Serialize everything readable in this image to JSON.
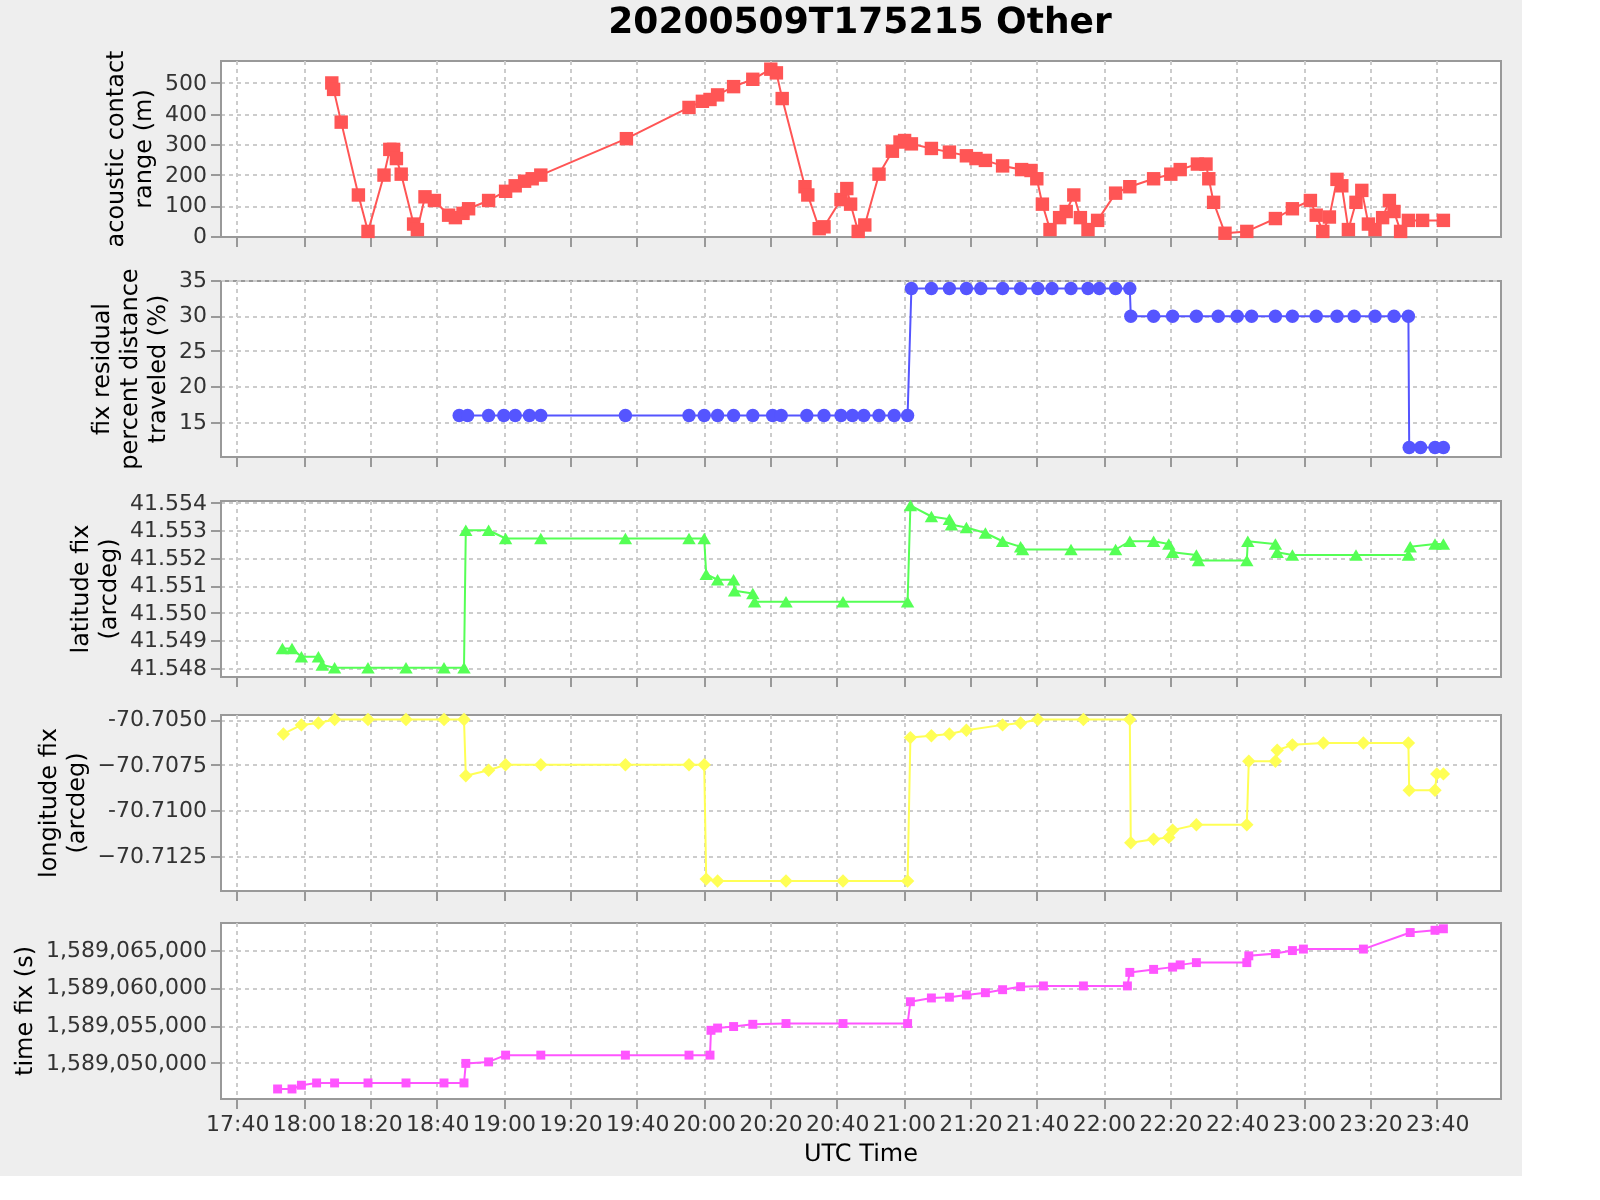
{
  "chart_data": [
    {
      "type": "line",
      "title": "20200509T175215 Other",
      "ylabel": "acoustic contact range (m)",
      "color": "#ff5555",
      "marker": "square",
      "grid": true,
      "tick_labels": "y",
      "xlim": [
        17.583,
        23.983
      ],
      "xticks": [
        {
          "value": 17.6667,
          "label": null
        },
        {
          "value": 18,
          "label": null
        },
        {
          "value": 18.3333,
          "label": null
        },
        {
          "value": 18.6667,
          "label": null
        },
        {
          "value": 19,
          "label": null
        },
        {
          "value": 19.3333,
          "label": null
        },
        {
          "value": 19.6667,
          "label": null
        },
        {
          "value": 20,
          "label": null
        },
        {
          "value": 20.3333,
          "label": null
        },
        {
          "value": 20.6667,
          "label": null
        },
        {
          "value": 21,
          "label": null
        },
        {
          "value": 21.3333,
          "label": null
        },
        {
          "value": 21.6667,
          "label": null
        },
        {
          "value": 22,
          "label": null
        },
        {
          "value": 22.3333,
          "label": null
        },
        {
          "value": 22.6667,
          "label": null
        },
        {
          "value": 23,
          "label": null
        },
        {
          "value": 23.3333,
          "label": null
        },
        {
          "value": 23.6667,
          "label": null
        }
      ],
      "ylim": [
        0,
        575
      ],
      "yticks": [
        0,
        100,
        200,
        300,
        400,
        500
      ],
      "x": [
        18.142,
        18.151,
        18.189,
        18.275,
        18.323,
        18.403,
        18.432,
        18.451,
        18.465,
        18.489,
        18.551,
        18.57,
        18.608,
        18.655,
        18.726,
        18.76,
        18.798,
        18.826,
        18.926,
        19.011,
        19.059,
        19.106,
        19.144,
        19.187,
        19.615,
        19.928,
        19.995,
        20.033,
        20.071,
        20.151,
        20.247,
        20.337,
        20.365,
        20.394,
        20.508,
        20.522,
        20.579,
        20.603,
        20.688,
        20.717,
        20.736,
        20.774,
        20.807,
        20.878,
        20.945,
        20.983,
        21.006,
        21.04,
        21.14,
        21.23,
        21.315,
        21.363,
        21.41,
        21.496,
        21.591,
        21.638,
        21.667,
        21.695,
        21.733,
        21.781,
        21.814,
        21.852,
        21.885,
        21.923,
        21.971,
        22.061,
        22.132,
        22.251,
        22.337,
        22.384,
        22.47,
        22.513,
        22.527,
        22.551,
        22.608,
        22.717,
        22.86,
        22.945,
        23.035,
        23.064,
        23.097,
        23.13,
        23.168,
        23.192,
        23.225,
        23.263,
        23.292,
        23.325,
        23.358,
        23.396,
        23.43,
        23.453,
        23.486,
        23.525,
        23.596,
        23.7
      ],
      "values": [
        500,
        479,
        372,
        134,
        15,
        199,
        283,
        283,
        253,
        202,
        39,
        21,
        128,
        116,
        68,
        60,
        74,
        89,
        116,
        146,
        164,
        179,
        187,
        199,
        318,
        420,
        440,
        446,
        461,
        488,
        512,
        545,
        533,
        449,
        161,
        134,
        24,
        30,
        119,
        155,
        104,
        15,
        36,
        202,
        277,
        307,
        312,
        301,
        286,
        274,
        262,
        253,
        247,
        229,
        217,
        214,
        187,
        104,
        21,
        60,
        80,
        134,
        60,
        21,
        51,
        140,
        161,
        187,
        202,
        217,
        235,
        235,
        187,
        110,
        9,
        15,
        57,
        89,
        116,
        68,
        15,
        62,
        185,
        164,
        21,
        110,
        149,
        39,
        21,
        60,
        116,
        80,
        15,
        51,
        51,
        51
      ]
    },
    {
      "type": "line",
      "ylabel": "fix residual percent distance traveled (%)",
      "color": "#5555ff",
      "marker": "circle",
      "grid": true,
      "tick_labels": "y",
      "xlim": [
        17.583,
        23.983
      ],
      "xticks": [
        {
          "value": 17.6667,
          "label": null
        },
        {
          "value": 18,
          "label": null
        },
        {
          "value": 18.3333,
          "label": null
        },
        {
          "value": 18.6667,
          "label": null
        },
        {
          "value": 19,
          "label": null
        },
        {
          "value": 19.3333,
          "label": null
        },
        {
          "value": 19.6667,
          "label": null
        },
        {
          "value": 20,
          "label": null
        },
        {
          "value": 20.3333,
          "label": null
        },
        {
          "value": 20.6667,
          "label": null
        },
        {
          "value": 21,
          "label": null
        },
        {
          "value": 21.3333,
          "label": null
        },
        {
          "value": 21.6667,
          "label": null
        },
        {
          "value": 22,
          "label": null
        },
        {
          "value": 22.3333,
          "label": null
        },
        {
          "value": 22.6667,
          "label": null
        },
        {
          "value": 23,
          "label": null
        },
        {
          "value": 23.3333,
          "label": null
        },
        {
          "value": 23.6667,
          "label": null
        }
      ],
      "ylim": [
        10.2,
        35
      ],
      "yticks": [
        15,
        20,
        25,
        30,
        35
      ],
      "x": [
        18.779,
        18.821,
        18.926,
        19.002,
        19.059,
        19.13,
        19.187,
        19.61,
        19.928,
        20.004,
        20.071,
        20.151,
        20.247,
        20.346,
        20.389,
        20.517,
        20.603,
        20.688,
        20.745,
        20.802,
        20.878,
        20.954,
        21.021,
        21.04,
        21.14,
        21.23,
        21.315,
        21.387,
        21.496,
        21.586,
        21.672,
        21.743,
        21.838,
        21.923,
        21.98,
        22.061,
        22.132,
        22.137,
        22.251,
        22.346,
        22.465,
        22.574,
        22.669,
        22.741,
        22.86,
        22.945,
        23.064,
        23.168,
        23.254,
        23.358,
        23.453,
        23.525,
        23.529,
        23.586,
        23.658,
        23.7
      ],
      "values": [
        15.9,
        15.9,
        15.9,
        15.9,
        15.9,
        15.9,
        15.9,
        15.9,
        15.9,
        15.9,
        15.9,
        15.9,
        15.9,
        15.9,
        15.9,
        15.9,
        15.9,
        15.9,
        15.9,
        15.9,
        15.9,
        15.9,
        15.9,
        33.8,
        33.8,
        33.8,
        33.8,
        33.8,
        33.8,
        33.8,
        33.8,
        33.8,
        33.8,
        33.8,
        33.8,
        33.8,
        33.8,
        29.9,
        29.9,
        29.9,
        29.9,
        29.9,
        29.9,
        29.9,
        29.9,
        29.9,
        29.9,
        29.9,
        29.9,
        29.9,
        29.9,
        29.9,
        11.4,
        11.4,
        11.4,
        11.4
      ]
    },
    {
      "type": "line",
      "ylabel": "latitude fix (arcdeg)",
      "color": "#55ff55",
      "marker": "triangle",
      "grid": true,
      "tick_labels": "y",
      "xlim": [
        17.583,
        23.983
      ],
      "xticks": [
        {
          "value": 17.6667,
          "label": null
        },
        {
          "value": 18,
          "label": null
        },
        {
          "value": 18.3333,
          "label": null
        },
        {
          "value": 18.6667,
          "label": null
        },
        {
          "value": 19,
          "label": null
        },
        {
          "value": 19.3333,
          "label": null
        },
        {
          "value": 19.6667,
          "label": null
        },
        {
          "value": 20,
          "label": null
        },
        {
          "value": 20.3333,
          "label": null
        },
        {
          "value": 20.6667,
          "label": null
        },
        {
          "value": 21,
          "label": null
        },
        {
          "value": 21.3333,
          "label": null
        },
        {
          "value": 21.6667,
          "label": null
        },
        {
          "value": 22,
          "label": null
        },
        {
          "value": 22.3333,
          "label": null
        },
        {
          "value": 22.6667,
          "label": null
        },
        {
          "value": 23,
          "label": null
        },
        {
          "value": 23.3333,
          "label": null
        },
        {
          "value": 23.6667,
          "label": null
        }
      ],
      "ylim": [
        41.5477,
        41.5541
      ],
      "yticks": [
        41.548,
        41.549,
        {
          "value": 41.55,
          "label": "41.550"
        },
        41.551,
        41.552,
        41.553,
        41.554
      ],
      "x": [
        17.895,
        17.943,
        17.99,
        18.075,
        18.094,
        18.156,
        18.323,
        18.513,
        18.703,
        18.803,
        18.812,
        18.926,
        19.011,
        19.187,
        19.61,
        19.928,
        20.004,
        20.014,
        20.071,
        20.151,
        20.156,
        20.247,
        20.256,
        20.413,
        20.698,
        21.021,
        21.035,
        21.14,
        21.23,
        21.24,
        21.315,
        21.41,
        21.496,
        21.586,
        21.596,
        21.838,
        22.061,
        22.132,
        22.251,
        22.327,
        22.346,
        22.465,
        22.475,
        22.717,
        22.722,
        22.86,
        22.869,
        22.945,
        23.263,
        23.525,
        23.534,
        23.658,
        23.7
      ],
      "values": [
        41.5487,
        41.5487,
        41.5484,
        41.5484,
        41.5481,
        41.548,
        41.548,
        41.548,
        41.548,
        41.548,
        41.553,
        41.553,
        41.5527,
        41.5527,
        41.5527,
        41.5527,
        41.5527,
        41.5514,
        41.5512,
        41.5512,
        41.5508,
        41.5507,
        41.5504,
        41.5504,
        41.5504,
        41.5504,
        41.5539,
        41.5535,
        41.5534,
        41.5532,
        41.5531,
        41.5529,
        41.5526,
        41.5524,
        41.5523,
        41.5523,
        41.5523,
        41.5526,
        41.5526,
        41.5525,
        41.5522,
        41.5521,
        41.5519,
        41.5519,
        41.5526,
        41.5525,
        41.5522,
        41.5521,
        41.5521,
        41.5521,
        41.5524,
        41.5525,
        41.5525
      ]
    },
    {
      "type": "line",
      "ylabel": "longitude fix (arcdeg)",
      "color": "#ffff55",
      "marker": "diamond",
      "grid": true,
      "tick_labels": "y",
      "xlim": [
        17.583,
        23.983
      ],
      "xticks": [
        {
          "value": 17.6667,
          "label": null
        },
        {
          "value": 18,
          "label": null
        },
        {
          "value": 18.3333,
          "label": null
        },
        {
          "value": 18.6667,
          "label": null
        },
        {
          "value": 19,
          "label": null
        },
        {
          "value": 19.3333,
          "label": null
        },
        {
          "value": 19.6667,
          "label": null
        },
        {
          "value": 20,
          "label": null
        },
        {
          "value": 20.3333,
          "label": null
        },
        {
          "value": 20.6667,
          "label": null
        },
        {
          "value": 21,
          "label": null
        },
        {
          "value": 21.3333,
          "label": null
        },
        {
          "value": 21.6667,
          "label": null
        },
        {
          "value": 22,
          "label": null
        },
        {
          "value": 22.3333,
          "label": null
        },
        {
          "value": 22.6667,
          "label": null
        },
        {
          "value": 23,
          "label": null
        },
        {
          "value": 23.3333,
          "label": null
        },
        {
          "value": 23.6667,
          "label": null
        }
      ],
      "ylim": [
        -70.7144,
        -70.7047
      ],
      "yticks": [
        -70.7125,
        {
          "value": -70.71,
          "label": "-70.7100"
        },
        -70.7075,
        {
          "value": -70.705,
          "label": "-70.7050"
        }
      ],
      "x": [
        17.9,
        17.99,
        18.075,
        18.156,
        18.323,
        18.513,
        18.703,
        18.803,
        18.812,
        18.926,
        19.011,
        19.187,
        19.61,
        19.928,
        20.004,
        20.014,
        20.071,
        20.413,
        20.698,
        21.021,
        21.035,
        21.14,
        21.23,
        21.315,
        21.496,
        21.586,
        21.672,
        21.9,
        22.132,
        22.137,
        22.251,
        22.327,
        22.346,
        22.465,
        22.717,
        22.727,
        22.86,
        22.869,
        22.945,
        23.1,
        23.3,
        23.525,
        23.529,
        23.658,
        23.667,
        23.7
      ],
      "values": [
        -70.7058,
        -70.7053,
        -70.7052,
        -70.705,
        -70.705,
        -70.705,
        -70.705,
        -70.705,
        -70.7081,
        -70.7078,
        -70.7075,
        -70.7075,
        -70.7075,
        -70.7075,
        -70.7075,
        -70.7138,
        -70.7139,
        -70.7139,
        -70.7139,
        -70.7139,
        -70.706,
        -70.7059,
        -70.7058,
        -70.7056,
        -70.7053,
        -70.7052,
        -70.705,
        -70.705,
        -70.705,
        -70.7118,
        -70.7116,
        -70.7115,
        -70.7111,
        -70.7108,
        -70.7108,
        -70.7073,
        -70.7073,
        -70.7067,
        -70.7064,
        -70.7063,
        -70.7063,
        -70.7063,
        -70.7089,
        -70.7089,
        -70.708,
        -70.708
      ]
    },
    {
      "type": "line",
      "ylabel": "time fix (s)",
      "xlabel": "UTC Time",
      "color": "#ff55ff",
      "marker": "square",
      "grid": true,
      "xlim": [
        17.583,
        23.983
      ],
      "xticks": [
        {
          "value": 17.6667,
          "label": "17:40"
        },
        {
          "value": 18,
          "label": "18:00"
        },
        {
          "value": 18.3333,
          "label": "18:20"
        },
        {
          "value": 18.6667,
          "label": "18:40"
        },
        {
          "value": 19,
          "label": "19:00"
        },
        {
          "value": 19.3333,
          "label": "19:20"
        },
        {
          "value": 19.6667,
          "label": "19:40"
        },
        {
          "value": 20,
          "label": "20:00"
        },
        {
          "value": 20.3333,
          "label": "20:20"
        },
        {
          "value": 20.6667,
          "label": "20:40"
        },
        {
          "value": 21,
          "label": "21:00"
        },
        {
          "value": 21.3333,
          "label": "21:20"
        },
        {
          "value": 21.6667,
          "label": "21:40"
        },
        {
          "value": 22,
          "label": "22:00"
        },
        {
          "value": 22.3333,
          "label": "22:20"
        },
        {
          "value": 22.6667,
          "label": "22:40"
        },
        {
          "value": 23,
          "label": "23:00"
        },
        {
          "value": 23.3333,
          "label": "23:20"
        },
        {
          "value": 23.6667,
          "label": "23:40"
        }
      ],
      "ylim": [
        1589045300,
        1589068700
      ],
      "yticks": [
        {
          "value": 1589050000,
          "label": "1,589,050,000"
        },
        {
          "value": 1589055000,
          "label": "1,589,055,000"
        },
        {
          "value": 1589060000,
          "label": "1,589,060,000"
        },
        {
          "value": 1589065000,
          "label": "1,589,065,000"
        }
      ],
      "x": [
        17.871,
        17.943,
        17.99,
        18.066,
        18.156,
        18.323,
        18.513,
        18.703,
        18.803,
        18.812,
        18.926,
        19.011,
        19.187,
        19.61,
        19.928,
        20.033,
        20.038,
        20.071,
        20.151,
        20.247,
        20.413,
        20.698,
        21.021,
        21.035,
        21.14,
        21.23,
        21.315,
        21.41,
        21.496,
        21.586,
        21.7,
        21.9,
        22.12,
        22.132,
        22.251,
        22.346,
        22.384,
        22.465,
        22.717,
        22.727,
        22.86,
        22.945,
        23.0,
        23.3,
        23.534,
        23.658,
        23.7
      ],
      "values": [
        1589046500,
        1589046500,
        1589047000,
        1589047300,
        1589047300,
        1589047300,
        1589047300,
        1589047300,
        1589047300,
        1589049900,
        1589050100,
        1589051000,
        1589051000,
        1589051000,
        1589051000,
        1589051000,
        1589054300,
        1589054600,
        1589054800,
        1589055100,
        1589055200,
        1589055200,
        1589055200,
        1589058100,
        1589058600,
        1589058700,
        1589059000,
        1589059300,
        1589059700,
        1589060100,
        1589060200,
        1589060200,
        1589060200,
        1589062000,
        1589062400,
        1589062700,
        1589063000,
        1589063300,
        1589063300,
        1589064200,
        1589064500,
        1589064900,
        1589065100,
        1589065100,
        1589067300,
        1589067600,
        1589067800
      ]
    }
  ]
}
